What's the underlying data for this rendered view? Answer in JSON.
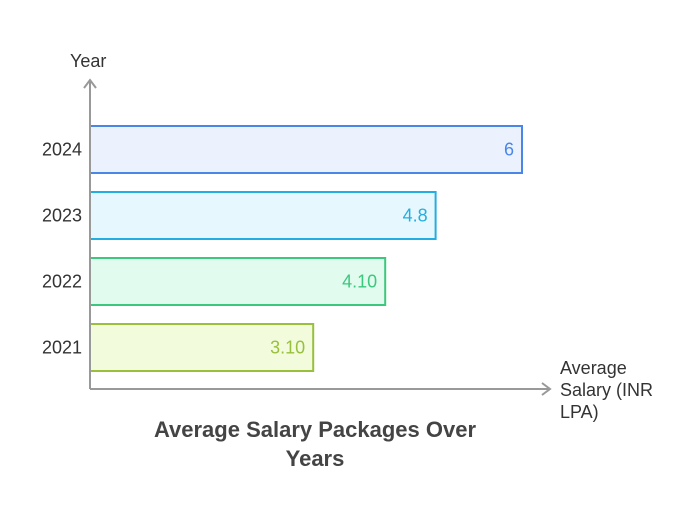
{
  "chart_data": {
    "type": "bar",
    "orientation": "horizontal",
    "title": "Average Salary Packages Over Years",
    "xlabel": "Average Salary (INR LPA)",
    "ylabel": "Year",
    "categories": [
      "2024",
      "2023",
      "2022",
      "2021"
    ],
    "values": [
      6,
      4.8,
      4.1,
      3.1
    ],
    "data_labels": [
      "6",
      "4.8",
      "4.10",
      "3.10"
    ],
    "xlim": [
      0,
      6
    ],
    "grid": false,
    "legend": "none",
    "colors": {
      "stroke": [
        "#4a86e8",
        "#22aee0",
        "#3cc77f",
        "#98c03c"
      ],
      "fill": [
        "#ebf2fe",
        "#e6f8fe",
        "#e1fcee",
        "#f2fcdc"
      ]
    },
    "axis_color": "#999999"
  }
}
